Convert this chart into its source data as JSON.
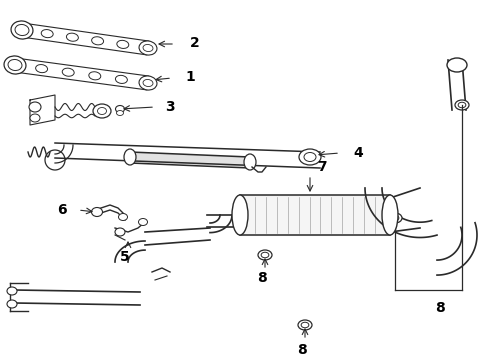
{
  "bg_color": "#ffffff",
  "line_color": "#2a2a2a",
  "label_color": "#000000",
  "fig_width": 4.89,
  "fig_height": 3.6,
  "dpi": 100,
  "gray": "#888888",
  "light_gray": "#cccccc"
}
